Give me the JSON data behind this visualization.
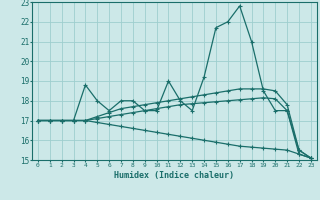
{
  "xlabel": "Humidex (Indice chaleur)",
  "xlim": [
    -0.5,
    23.5
  ],
  "ylim": [
    15,
    23
  ],
  "yticks": [
    15,
    16,
    17,
    18,
    19,
    20,
    21,
    22,
    23
  ],
  "xticks": [
    0,
    1,
    2,
    3,
    4,
    5,
    6,
    7,
    8,
    9,
    10,
    11,
    12,
    13,
    14,
    15,
    16,
    17,
    18,
    19,
    20,
    21,
    22,
    23
  ],
  "bg_color": "#cce8e8",
  "line_color": "#1a6e6a",
  "grid_color": "#9ecece",
  "lines": [
    [
      17.0,
      17.0,
      17.0,
      17.0,
      18.8,
      18.0,
      17.5,
      18.0,
      18.0,
      17.5,
      17.5,
      19.0,
      18.0,
      17.5,
      19.2,
      21.7,
      22.0,
      22.8,
      21.0,
      18.5,
      17.5,
      17.5,
      15.3,
      15.1
    ],
    [
      17.0,
      17.0,
      17.0,
      17.0,
      17.0,
      17.2,
      17.4,
      17.6,
      17.7,
      17.8,
      17.9,
      18.0,
      18.1,
      18.2,
      18.3,
      18.4,
      18.5,
      18.6,
      18.6,
      18.6,
      18.5,
      17.8,
      15.5,
      15.1
    ],
    [
      17.0,
      17.0,
      17.0,
      17.0,
      17.0,
      17.1,
      17.2,
      17.3,
      17.4,
      17.5,
      17.6,
      17.7,
      17.8,
      17.85,
      17.9,
      17.95,
      18.0,
      18.05,
      18.1,
      18.15,
      18.1,
      17.5,
      15.5,
      15.1
    ],
    [
      17.0,
      17.0,
      17.0,
      17.0,
      17.0,
      16.9,
      16.8,
      16.7,
      16.6,
      16.5,
      16.4,
      16.3,
      16.2,
      16.1,
      16.0,
      15.9,
      15.8,
      15.7,
      15.65,
      15.6,
      15.55,
      15.5,
      15.3,
      15.1
    ]
  ]
}
